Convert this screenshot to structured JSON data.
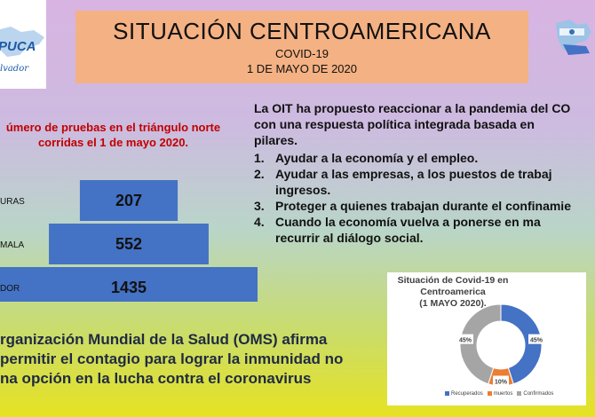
{
  "title": {
    "main": "SITUACIÓN CENTROAMERICANA",
    "sub": "COVID-19",
    "date": "1 DE MAYO DE 2020"
  },
  "logo_left": {
    "brand": "PUCA",
    "tagline": "lvador"
  },
  "pyramid": {
    "title_line1": "úmero de pruebas en el triángulo norte",
    "title_line2": "corridas el 1 de mayo 2020.",
    "bar_color": "#4472c4",
    "rows": [
      {
        "label": "URAS",
        "value": "207"
      },
      {
        "label": "MALA",
        "value": "552"
      },
      {
        "label": "DOR",
        "value": "1435"
      }
    ]
  },
  "oit": {
    "intro_line1": "La OIT ha propuesto reaccionar a la pandemia del CO",
    "intro_line2": "con una respuesta política integrada basada en",
    "intro_line3": "pilares.",
    "items": [
      {
        "num": "1.",
        "line1": "Ayudar a la economía y el empleo.",
        "line2": ""
      },
      {
        "num": "2.",
        "line1": "Ayudar a las empresas, a los puestos de trabaj",
        "line2": "ingresos."
      },
      {
        "num": "3.",
        "line1": "Proteger a quienes trabajan durante el confinamie",
        "line2": ""
      },
      {
        "num": "4.",
        "line1": "Cuando la economía vuelva a ponerse en ma",
        "line2": "recurrir al diálogo social."
      }
    ]
  },
  "oms": {
    "line1": "rganización Mundial de la Salud (OMS) afirma",
    "line2": "permitir el contagio para lograr la inmunidad no",
    "line3": "na opción en la lucha contra el coronavirus"
  },
  "chart_data": {
    "type": "pie",
    "variant": "donut",
    "title": "Situación de Covid-19 en Centroamerica (1 MAYO 2020).",
    "title_line1": "Situación de Covid-19 en",
    "title_line2": "Centroamerica",
    "title_line3": "(1 MAYO 2020).",
    "categories": [
      "Recuperados",
      "muertos",
      "Confirmados"
    ],
    "values": [
      45,
      10,
      45
    ],
    "value_labels": [
      "45%",
      "10%",
      "45%"
    ],
    "colors": [
      "#4472c4",
      "#ed7d31",
      "#a5a5a5"
    ],
    "legend_position": "bottom"
  }
}
